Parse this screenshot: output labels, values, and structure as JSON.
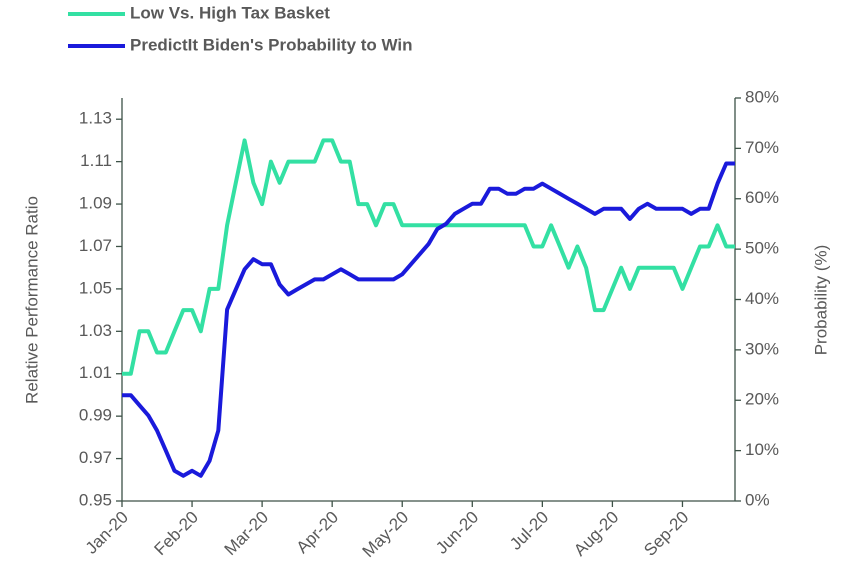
{
  "chart_data": {
    "type": "line",
    "categories": [
      "Jan-20",
      null,
      null,
      null,
      null,
      null,
      null,
      null,
      "Feb-20",
      null,
      null,
      null,
      null,
      null,
      null,
      null,
      "Mar-20",
      null,
      null,
      null,
      null,
      null,
      null,
      null,
      "Apr-20",
      null,
      null,
      null,
      null,
      null,
      null,
      null,
      "May-20",
      null,
      null,
      null,
      null,
      null,
      null,
      null,
      "Jun-20",
      null,
      null,
      null,
      null,
      null,
      null,
      null,
      "Jul-20",
      null,
      null,
      null,
      null,
      null,
      null,
      null,
      "Aug-20",
      null,
      null,
      null,
      null,
      null,
      null,
      null,
      "Sep-20",
      null,
      null,
      null,
      null,
      null,
      null
    ],
    "series": [
      {
        "name": "Low Vs. High Tax Basket",
        "color": "#33e0a3",
        "axis": "y",
        "values": [
          1.01,
          1.01,
          1.03,
          1.03,
          1.02,
          1.02,
          1.03,
          1.04,
          1.04,
          1.03,
          1.05,
          1.05,
          1.08,
          1.1,
          1.12,
          1.1,
          1.09,
          1.11,
          1.1,
          1.11,
          1.11,
          1.11,
          1.11,
          1.12,
          1.12,
          1.11,
          1.11,
          1.09,
          1.09,
          1.08,
          1.09,
          1.09,
          1.08,
          1.08,
          1.08,
          1.08,
          1.08,
          1.08,
          1.08,
          1.08,
          1.08,
          1.08,
          1.08,
          1.08,
          1.08,
          1.08,
          1.08,
          1.07,
          1.07,
          1.08,
          1.07,
          1.06,
          1.07,
          1.06,
          1.04,
          1.04,
          1.05,
          1.06,
          1.05,
          1.06,
          1.06,
          1.06,
          1.06,
          1.06,
          1.05,
          1.06,
          1.07,
          1.07,
          1.08,
          1.07,
          1.07
        ]
      },
      {
        "name": "PredictIt Biden's Probability to Win",
        "color": "#1a1adb",
        "axis": "y2",
        "values": [
          21,
          21,
          19,
          17,
          14,
          10,
          6,
          5,
          6,
          5,
          8,
          14,
          38,
          42,
          46,
          48,
          47,
          47,
          43,
          41,
          42,
          43,
          44,
          44,
          45,
          46,
          45,
          44,
          44,
          44,
          44,
          44,
          45,
          47,
          49,
          51,
          54,
          55,
          57,
          58,
          59,
          59,
          62,
          62,
          61,
          61,
          62,
          62,
          63,
          62,
          61,
          60,
          59,
          58,
          57,
          58,
          58,
          58,
          56,
          58,
          59,
          58,
          58,
          58,
          58,
          57,
          58,
          58,
          63,
          67,
          67
        ]
      }
    ],
    "ylabel": "Relative Performance Ratio",
    "y2label": "Probability (%)",
    "ylim": [
      0.95,
      1.14
    ],
    "yticks": [
      0.95,
      0.97,
      0.99,
      1.01,
      1.03,
      1.05,
      1.07,
      1.09,
      1.11,
      1.13
    ],
    "y2lim": [
      0,
      80
    ],
    "y2ticks": [
      {
        "value": 0,
        "label": "0%"
      },
      {
        "value": 10,
        "label": "10%"
      },
      {
        "value": 20,
        "label": "20%"
      },
      {
        "value": 30,
        "label": "30%"
      },
      {
        "value": 40,
        "label": "40%"
      },
      {
        "value": 50,
        "label": "50%"
      },
      {
        "value": 60,
        "label": "60%"
      },
      {
        "value": 70,
        "label": "70%"
      },
      {
        "value": 80,
        "label": "80%"
      }
    ],
    "legend": "top-left"
  }
}
